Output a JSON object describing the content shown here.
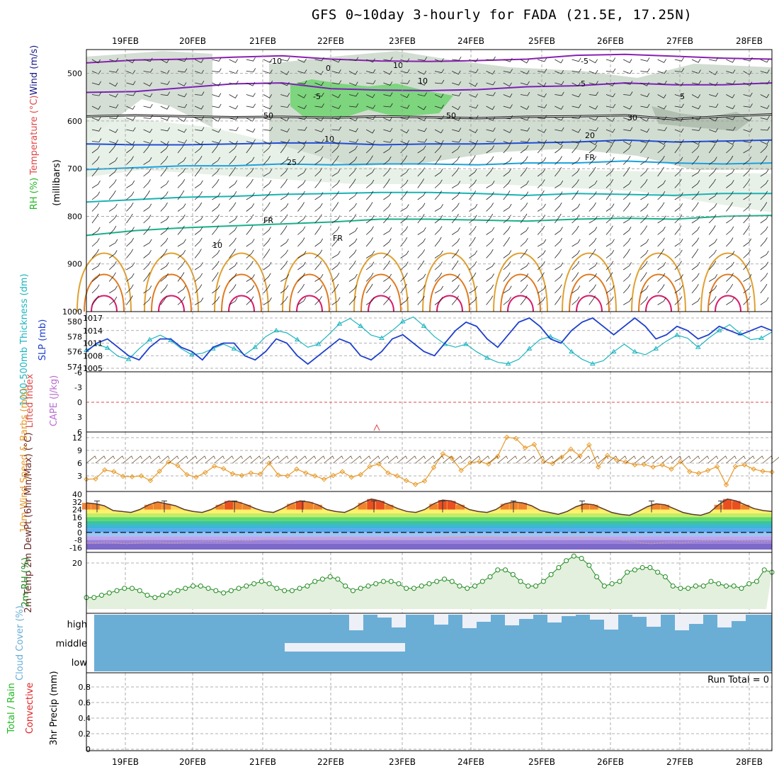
{
  "title": "GFS 0~10day 3-hourly for FADA (21.5E, 17.25N)",
  "dates": [
    "19FEB",
    "20FEB",
    "21FEB",
    "22FEB",
    "23FEB",
    "24FEB",
    "25FEB",
    "26FEB",
    "27FEB",
    "28FEB"
  ],
  "colors": {
    "temp": "#e04848",
    "rh_bar": "#22b822",
    "wind": "#1a1a88",
    "slp": "#1e3fcc",
    "thick": "#1fb5c0",
    "cape": "#b86fcf",
    "li": "#e04848",
    "wind10": "#e89a2a",
    "rh2m": "#1e8a1e",
    "cloud": "#6aaed6",
    "precip_total": "#22b822",
    "precip_conv": "#e02020"
  },
  "chart_data": [
    {
      "type": "heatmap",
      "name": "upper-air cross section",
      "ylabel_parts": [
        "RH (%)",
        "Temperature",
        "(°C)",
        "Wind",
        "(m/s)"
      ],
      "ylabel2": "(millibars)",
      "yticks": [
        500,
        600,
        700,
        800,
        900,
        1000
      ],
      "ylim": [
        1000,
        450
      ],
      "contour_labels": [
        "10",
        "-10",
        "-5",
        "-5",
        "5",
        "10",
        "20",
        "25",
        "FR",
        "FR",
        "FR",
        "50",
        "50",
        "30",
        "10",
        "0",
        "5",
        "10"
      ],
      "isotherms": [
        {
          "level": -10,
          "p": [
            478,
            472,
            470,
            466,
            463,
            470,
            474,
            475,
            473,
            470,
            462,
            460,
            464,
            468,
            470
          ]
        },
        {
          "level": -5,
          "p": [
            540,
            538,
            530,
            522,
            520,
            532,
            535,
            536,
            534,
            528,
            526,
            520,
            524,
            524,
            520
          ]
        },
        {
          "level": 0,
          "p": [
            590,
            588,
            590,
            592,
            591,
            593,
            590,
            592,
            594,
            591,
            590,
            588,
            596,
            590,
            586
          ]
        },
        {
          "level": 5,
          "p": [
            648,
            650,
            650,
            648,
            646,
            646,
            650,
            648,
            648,
            646,
            644,
            640,
            644,
            642,
            640
          ]
        },
        {
          "level": 10,
          "p": [
            702,
            698,
            694,
            694,
            690,
            692,
            690,
            690,
            692,
            688,
            688,
            684,
            688,
            690,
            688
          ]
        },
        {
          "level": 15,
          "p": [
            770,
            765,
            760,
            758,
            754,
            752,
            750,
            750,
            752,
            756,
            752,
            754,
            756,
            752,
            752
          ]
        },
        {
          "level": 20,
          "p": [
            840,
            830,
            824,
            820,
            816,
            812,
            806,
            806,
            808,
            810,
            806,
            804,
            806,
            800,
            798
          ]
        }
      ]
    },
    {
      "type": "line",
      "name": "thickness and SLP",
      "ylabel_left": "1000-500mb Thickness (dm)",
      "ylabel_right": "SLP (mb)",
      "y1ticks": [
        574,
        576,
        578,
        580
      ],
      "y2ticks": [
        1005,
        1008,
        1011,
        1014,
        1017
      ],
      "series": [
        {
          "name": "SLP (mb)",
          "values": [
            1009,
            1011,
            1012,
            1010,
            1008,
            1007,
            1010,
            1012,
            1012,
            1010,
            1009,
            1007,
            1010,
            1011,
            1011,
            1008,
            1007,
            1009,
            1012,
            1011,
            1008,
            1006,
            1008,
            1010,
            1012,
            1011,
            1008,
            1007,
            1009,
            1012,
            1013,
            1011,
            1009,
            1008,
            1011,
            1014,
            1016,
            1015,
            1012,
            1010,
            1013,
            1016,
            1017,
            1015,
            1012,
            1011,
            1014,
            1016,
            1017,
            1015,
            1013,
            1015,
            1017,
            1015,
            1012,
            1013,
            1015,
            1014,
            1012,
            1013,
            1015,
            1014,
            1013,
            1014,
            1015,
            1014
          ]
        },
        {
          "name": "Thickness (dm)",
          "values": [
            576.2,
            577,
            576.5,
            575.4,
            575.0,
            576.4,
            577.6,
            578.2,
            577.5,
            576.4,
            575.6,
            575.8,
            576.4,
            577.0,
            576.4,
            575.6,
            576.6,
            578.0,
            578.8,
            578.5,
            577.6,
            576.6,
            577.0,
            578.3,
            579.7,
            580.4,
            579.4,
            578.2,
            577.8,
            578.8,
            580.0,
            580.6,
            579.4,
            578.0,
            577.0,
            576.6,
            577.0,
            576.0,
            575.2,
            574.6,
            574.4,
            575.0,
            576.4,
            577.6,
            578.0,
            577.4,
            576.0,
            575.0,
            574.4,
            574.8,
            576.0,
            577.0,
            576.0,
            575.6,
            576.4,
            577.4,
            578.2,
            577.8,
            576.6,
            577.8,
            578.8,
            579.6,
            578.4,
            577.6,
            577.8,
            578.6
          ]
        }
      ]
    },
    {
      "type": "line",
      "name": "lifted index and CAPE",
      "ylabel_left": "Lifted Index",
      "ylabel_right": "CAPE (J/kg)",
      "yticks": [
        -6,
        -3,
        0,
        3,
        6
      ],
      "ylim": [
        -6,
        6
      ],
      "values": [
        0
      ]
    },
    {
      "type": "line",
      "name": "10m wind",
      "ylabel": "10m Wind Speed & Barbs (m/s)",
      "yticks": [
        3,
        6,
        9,
        12
      ],
      "ylim": [
        0,
        13
      ],
      "values": [
        2.2,
        2.3,
        4.4,
        4.0,
        2.9,
        2.8,
        3.0,
        1.9,
        4.1,
        6.3,
        5.4,
        3.3,
        2.7,
        3.8,
        5.3,
        4.7,
        3.5,
        3.1,
        3.7,
        3.4,
        6.0,
        3.2,
        3.0,
        4.6,
        3.7,
        3.0,
        2.2,
        3.1,
        4.0,
        2.7,
        3.3,
        5.2,
        5.8,
        3.7,
        3.0,
        1.9,
        1.0,
        1.8,
        5.0,
        8.2,
        7.1,
        4.3,
        6.1,
        6.4,
        5.8,
        7.6,
        12.1,
        11.8,
        9.6,
        10.4,
        6.4,
        5.9,
        7.4,
        9.3,
        7.7,
        10.3,
        5.1,
        7.8,
        6.8,
        6.3,
        5.6,
        5.7,
        5.1,
        5.6,
        4.6,
        6.4,
        4.0,
        3.6,
        4.3,
        5.2,
        0.9,
        5.2,
        5.6,
        4.6,
        4.1,
        3.9
      ]
    },
    {
      "type": "area",
      "name": "2m temperature",
      "ylabel": "2m Temp 2m DewPt (6hr Min/Max) (°C)",
      "yticks": [
        40,
        32,
        24,
        16,
        8,
        0,
        -8,
        -16
      ],
      "ylim": [
        -18,
        40
      ],
      "values": [
        31,
        30,
        28,
        23,
        22,
        21,
        24,
        29,
        32,
        30,
        28,
        24,
        22,
        21,
        24,
        29,
        33,
        32,
        29,
        25,
        22,
        21,
        25,
        30,
        33,
        32,
        29,
        24,
        22,
        21,
        25,
        31,
        35,
        33,
        29,
        25,
        22,
        21,
        24,
        30,
        34,
        33,
        29,
        24,
        22,
        21,
        24,
        30,
        32,
        31,
        28,
        23,
        21,
        19,
        22,
        27,
        30,
        29,
        25,
        21,
        19,
        18,
        22,
        27,
        30,
        29,
        25,
        21,
        19,
        18,
        21,
        29,
        35,
        33,
        29,
        25,
        23,
        22
      ],
      "dewpoint": [
        -11,
        -11,
        -10,
        -11,
        -12,
        -11,
        -10,
        -10,
        -11,
        -11,
        -10,
        -10,
        -9,
        -10,
        -9,
        -8,
        -9,
        -8,
        -7,
        -8,
        -7,
        -6,
        -6,
        -7,
        -6,
        -6,
        -6,
        -7,
        -7,
        -6,
        -7,
        -7,
        -6,
        -6,
        -7,
        -6,
        -5,
        -5,
        -4,
        -5,
        -5,
        -6,
        -6,
        -5,
        -6,
        -6,
        -5,
        -6,
        -6,
        -5,
        -6,
        -6,
        -7,
        -8,
        -9,
        -11,
        -12,
        -11,
        -10,
        -11,
        -10,
        -9,
        -9,
        -8,
        -8,
        -9,
        -9,
        -10,
        -9
      ]
    },
    {
      "type": "area",
      "name": "2m relative humidity",
      "ylabel": "2m RH (%)",
      "yticks": [
        20
      ],
      "ylim": [
        0,
        24
      ],
      "values": [
        5,
        5,
        6,
        7,
        8,
        9,
        9,
        8,
        6,
        5,
        6,
        7,
        8,
        9,
        10,
        10,
        9,
        8,
        7,
        8,
        9,
        10,
        11,
        12,
        11,
        9,
        8,
        8,
        9,
        10,
        12,
        13,
        14,
        13,
        10,
        8,
        9,
        10,
        11,
        12,
        12,
        11,
        9,
        9,
        10,
        11,
        12,
        13,
        12,
        10,
        9,
        10,
        12,
        14,
        17,
        17,
        15,
        12,
        10,
        10,
        12,
        15,
        18,
        21,
        23,
        22,
        19,
        14,
        10,
        11,
        12,
        16,
        17,
        18,
        18,
        16,
        14,
        10,
        9,
        9,
        10,
        10,
        12,
        11,
        10,
        10,
        9,
        11,
        12,
        17,
        16
      ]
    },
    {
      "type": "bar",
      "name": "cloud cover",
      "ylabel": "Cloud Cover (%)",
      "levels": [
        "high",
        "middle",
        "low"
      ]
    },
    {
      "type": "bar",
      "name": "3hr precip",
      "ylabel": "3hr Precip (mm)",
      "ylabel_side": [
        "Total / Rain",
        "Convective"
      ],
      "yticks": [
        0,
        0.2,
        0.4,
        0.6,
        0.8
      ],
      "ylim": [
        0,
        1
      ],
      "run_total_label": "Run Total = 0",
      "values": [
        0
      ]
    }
  ]
}
